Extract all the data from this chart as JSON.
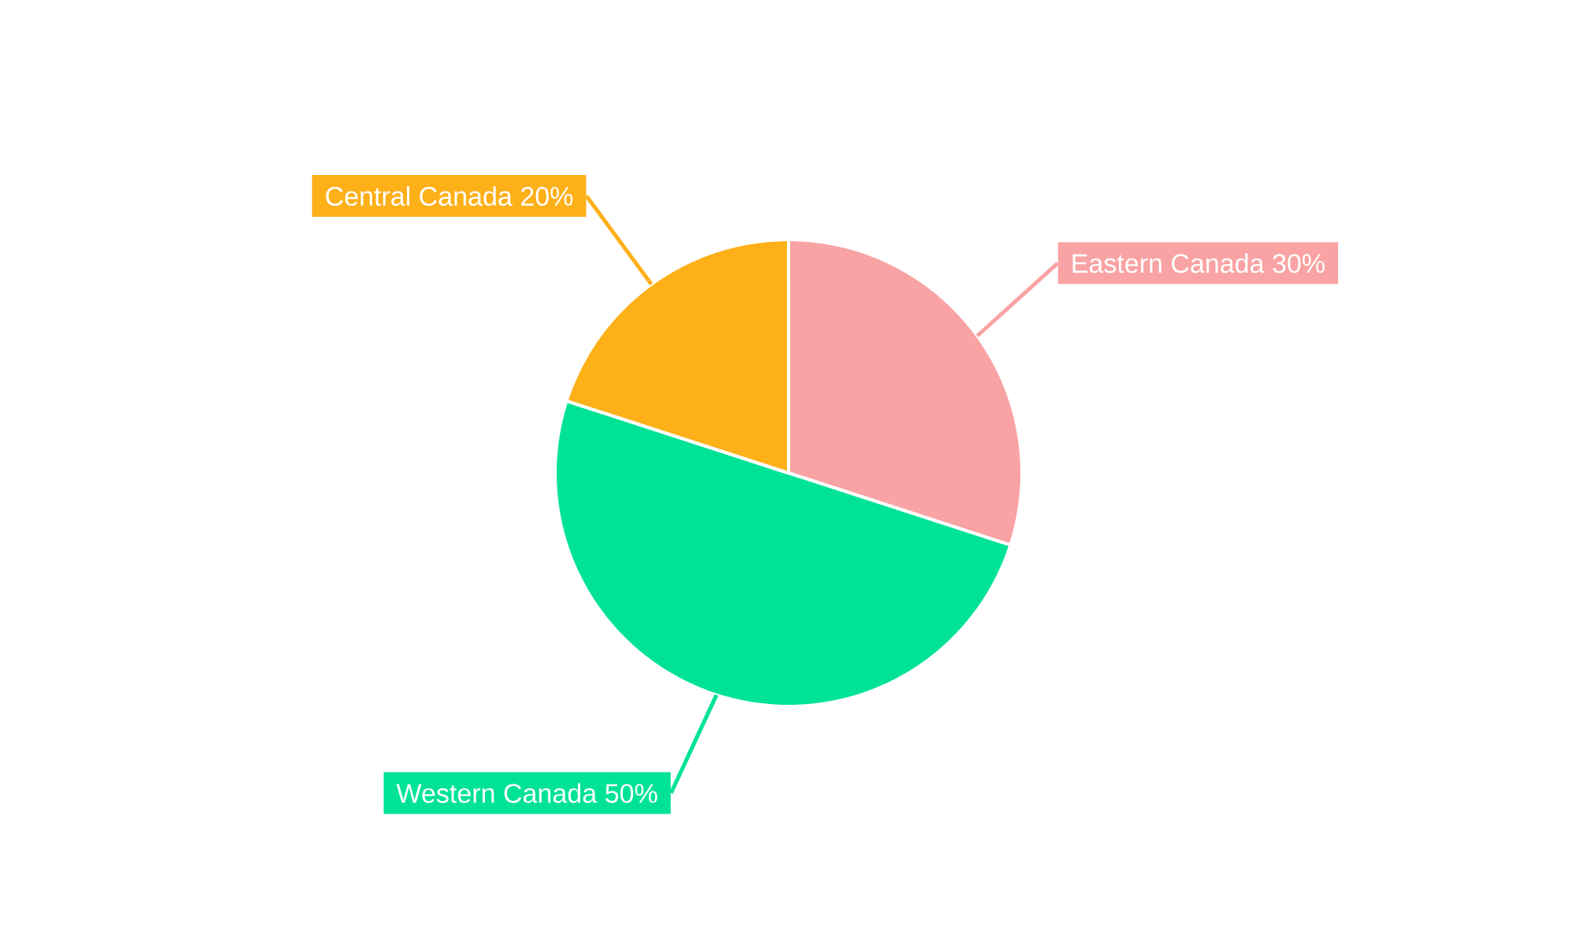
{
  "chart_data": {
    "type": "pie",
    "categories": [
      "Eastern Canada",
      "Western Canada",
      "Central Canada"
    ],
    "values": [
      30,
      50,
      20
    ],
    "colors": [
      "#f9a3a4",
      "#00e396",
      "#feb019"
    ],
    "value_labels": [
      "30%",
      "50%",
      "20%"
    ]
  }
}
